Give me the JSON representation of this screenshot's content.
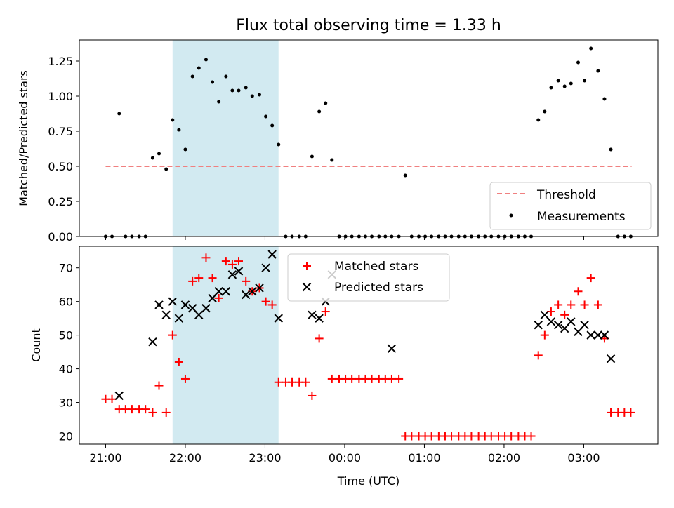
{
  "title": "Flux total observing time = 1.33 h",
  "colors": {
    "threshold": "#f08080",
    "measurements": "#000000",
    "matched": "#ff0000",
    "predicted": "#000000",
    "shade": "#add8e6"
  },
  "chart_data": [
    {
      "type": "scatter",
      "name": "ratio",
      "ylabel": "Matched/Predicted stars",
      "xlabel": "",
      "x_unit": "hours since 21:00 UTC",
      "xlim": [
        -0.33,
        6.93
      ],
      "ylim": [
        0.0,
        1.4
      ],
      "yticks": [
        "0.00",
        "0.25",
        "0.50",
        "0.75",
        "1.00",
        "1.25"
      ],
      "ytick_values": [
        0.0,
        0.25,
        0.5,
        0.75,
        1.0,
        1.25
      ],
      "shaded_interval": [
        0.84,
        2.17
      ],
      "threshold": {
        "label": "Threshold",
        "value": 0.5,
        "x_range": [
          0.0,
          6.6
        ]
      },
      "legend": {
        "position": "lower-right",
        "entries": [
          "Threshold",
          "Measurements"
        ]
      },
      "measurements": {
        "label": "Measurements",
        "x": [
          0.0,
          0.08,
          0.17,
          0.25,
          0.33,
          0.42,
          0.5,
          0.59,
          0.67,
          0.76,
          0.84,
          0.92,
          1.0,
          1.09,
          1.17,
          1.26,
          1.34,
          1.42,
          1.51,
          1.59,
          1.67,
          1.76,
          1.84,
          1.93,
          2.01,
          2.09,
          2.17,
          2.26,
          2.34,
          2.43,
          2.51,
          2.59,
          2.68,
          2.76,
          2.84,
          2.93,
          3.01,
          3.09,
          3.18,
          3.26,
          3.34,
          3.43,
          3.51,
          3.59,
          3.68,
          3.76,
          3.84,
          3.93,
          4.01,
          4.09,
          4.18,
          4.26,
          4.34,
          4.43,
          4.51,
          4.59,
          4.68,
          4.76,
          4.84,
          4.93,
          5.01,
          5.09,
          5.18,
          5.26,
          5.34,
          5.43,
          5.51,
          5.59,
          5.68,
          5.76,
          5.84,
          5.93,
          6.01,
          6.09,
          6.18,
          6.26,
          6.34,
          6.43,
          6.51,
          6.59
        ],
        "y": [
          0.0,
          0.0,
          0.875,
          0.0,
          0.0,
          0.0,
          0.0,
          0.56,
          0.59,
          0.48,
          0.83,
          0.76,
          0.62,
          1.14,
          1.2,
          1.26,
          1.1,
          0.96,
          1.14,
          1.04,
          1.04,
          1.06,
          1.0,
          1.01,
          0.855,
          0.79,
          0.655,
          0.0,
          0.0,
          0.0,
          0.0,
          0.57,
          0.89,
          0.95,
          0.545,
          0.0,
          0.0,
          0.0,
          0.0,
          0.0,
          0.0,
          0.0,
          0.0,
          0.0,
          0.0,
          0.435,
          0.0,
          0.0,
          0.0,
          0.0,
          0.0,
          0.0,
          0.0,
          0.0,
          0.0,
          0.0,
          0.0,
          0.0,
          0.0,
          0.0,
          0.0,
          0.0,
          0.0,
          0.0,
          0.0,
          0.83,
          0.89,
          1.06,
          1.11,
          1.07,
          1.09,
          1.24,
          1.11,
          1.34,
          1.18,
          0.98,
          0.62,
          0.0,
          0.0,
          0.0
        ]
      }
    },
    {
      "type": "scatter",
      "name": "counts",
      "xlabel": "Time (UTC)",
      "ylabel": "Count",
      "x_unit": "hours since 21:00 UTC",
      "xlim": [
        -0.33,
        6.93
      ],
      "ylim": [
        17.6,
        76.4
      ],
      "xticks": [
        "21:00",
        "22:00",
        "23:00",
        "00:00",
        "01:00",
        "02:00",
        "03:00"
      ],
      "xtick_values": [
        0,
        1,
        2,
        3,
        4,
        5,
        6
      ],
      "yticks": [
        "20",
        "30",
        "40",
        "50",
        "60",
        "70"
      ],
      "ytick_values": [
        20,
        30,
        40,
        50,
        60,
        70
      ],
      "shaded_interval": [
        0.84,
        2.17
      ],
      "legend": {
        "position": "top-center",
        "entries": [
          "Matched stars",
          "Predicted stars"
        ]
      },
      "series": [
        {
          "name": "Matched stars",
          "marker": "+",
          "x": [
            0.0,
            0.08,
            0.17,
            0.25,
            0.33,
            0.42,
            0.5,
            0.59,
            0.67,
            0.76,
            0.84,
            0.92,
            1.0,
            1.09,
            1.17,
            1.26,
            1.34,
            1.42,
            1.51,
            1.59,
            1.67,
            1.76,
            1.84,
            1.93,
            2.01,
            2.09,
            2.17,
            2.26,
            2.34,
            2.43,
            2.51,
            2.59,
            2.68,
            2.76,
            2.84,
            2.93,
            3.01,
            3.09,
            3.18,
            3.26,
            3.34,
            3.43,
            3.51,
            3.59,
            3.68,
            3.76,
            3.84,
            3.93,
            4.01,
            4.09,
            4.18,
            4.26,
            4.34,
            4.43,
            4.51,
            4.59,
            4.68,
            4.76,
            4.84,
            4.93,
            5.01,
            5.09,
            5.18,
            5.26,
            5.34,
            5.43,
            5.51,
            5.59,
            5.68,
            5.76,
            5.84,
            5.93,
            6.01,
            6.09,
            6.18,
            6.26,
            6.34,
            6.43,
            6.51,
            6.59
          ],
          "y": [
            31,
            31,
            28,
            28,
            28,
            28,
            28,
            27,
            35,
            27,
            50,
            42,
            37,
            66,
            67,
            73,
            67,
            61,
            72,
            71,
            72,
            66,
            63,
            64,
            60,
            59,
            36,
            36,
            36,
            36,
            36,
            32,
            49,
            57,
            37,
            37,
            37,
            37,
            37,
            37,
            37,
            37,
            37,
            37,
            37,
            20,
            20,
            20,
            20,
            20,
            20,
            20,
            20,
            20,
            20,
            20,
            20,
            20,
            20,
            20,
            20,
            20,
            20,
            20,
            20,
            44,
            50,
            57,
            59,
            56,
            59,
            63,
            59,
            67,
            59,
            49,
            27,
            27,
            27,
            27
          ]
        },
        {
          "name": "Predicted stars",
          "marker": "x",
          "x": [
            0.17,
            0.59,
            0.67,
            0.76,
            0.84,
            0.92,
            1.0,
            1.09,
            1.17,
            1.26,
            1.34,
            1.42,
            1.51,
            1.59,
            1.67,
            1.76,
            1.84,
            1.93,
            2.01,
            2.09,
            2.17,
            2.59,
            2.68,
            2.76,
            2.84,
            3.59,
            5.43,
            5.51,
            5.59,
            5.68,
            5.76,
            5.84,
            5.93,
            6.01,
            6.09,
            6.18,
            6.26,
            6.34
          ],
          "y": [
            32,
            48,
            59,
            56,
            60,
            55,
            59,
            58,
            56,
            58,
            61,
            63,
            63,
            68,
            69,
            62,
            63,
            64,
            70,
            74,
            55,
            56,
            55,
            60,
            68,
            46,
            53,
            56,
            54,
            53,
            52,
            54,
            51,
            53,
            50,
            50,
            50,
            43
          ]
        }
      ]
    }
  ]
}
